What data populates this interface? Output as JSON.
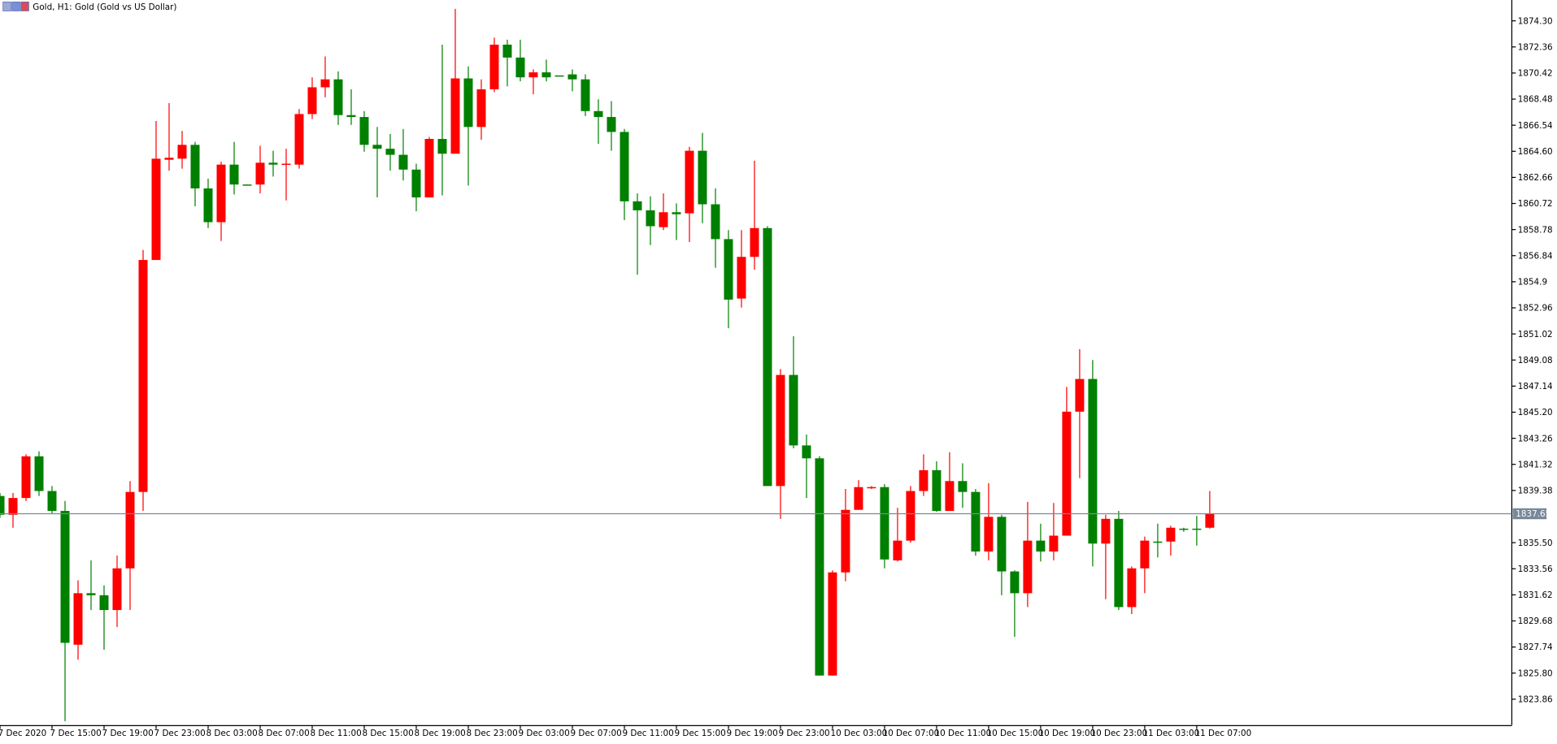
{
  "chart_data": {
    "type": "candlestick",
    "title": "Gold, H1:  Gold (Gold vs US Dollar)",
    "x": [
      "7 Dec 2020",
      null,
      null,
      null,
      "7 Dec 15:00",
      null,
      null,
      null,
      "7 Dec 19:00",
      null,
      null,
      null,
      "7 Dec 23:00",
      null,
      null,
      null,
      "8 Dec 03:00",
      null,
      null,
      null,
      "8 Dec 07:00",
      null,
      null,
      null,
      "8 Dec 11:00",
      null,
      null,
      null,
      "8 Dec 15:00",
      null,
      null,
      null,
      "8 Dec 19:00",
      null,
      null,
      null,
      "8 Dec 23:00",
      null,
      null,
      null,
      "9 Dec 03:00",
      null,
      null,
      null,
      "9 Dec 07:00",
      null,
      null,
      null,
      "9 Dec 11:00",
      null,
      null,
      null,
      "9 Dec 15:00",
      null,
      null,
      null,
      "9 Dec 19:00",
      null,
      null,
      null,
      "9 Dec 23:00",
      null,
      null,
      null,
      "10 Dec 03:00",
      null,
      null,
      null,
      "10 Dec 07:00",
      null,
      null,
      null,
      "10 Dec 11:00",
      null,
      null,
      null,
      "10 Dec 15:00",
      null,
      null,
      null,
      "10 Dec 19:00",
      null,
      null,
      null,
      "10 Dec 23:00",
      null,
      null,
      null,
      "11 Dec 03:00",
      null,
      null,
      null,
      "11 Dec 07:00",
      null
    ],
    "open": [
      1838.97,
      1837.57,
      1838.82,
      1841.92,
      1839.34,
      1837.86,
      1827.91,
      1831.74,
      1831.59,
      1830.49,
      1833.59,
      1839.27,
      1856.52,
      1863.97,
      1864.05,
      1865.08,
      1861.84,
      1859.33,
      1863.61,
      1862.13,
      1862.13,
      1863.75,
      1863.61,
      1863.61,
      1867.37,
      1869.36,
      1869.95,
      1867.29,
      1867.15,
      1865.08,
      1864.79,
      1864.34,
      1863.24,
      1861.17,
      1865.52,
      1864.42,
      1870.02,
      1866.41,
      1869.21,
      1872.53,
      1871.57,
      1870.1,
      1870.47,
      1870.24,
      1870.32,
      1869.95,
      1867.59,
      1867.15,
      1866.04,
      1860.88,
      1860.21,
      1858.96,
      1860.07,
      1859.99,
      1864.64,
      1860.66,
      1858.07,
      1853.65,
      1856.75,
      1858.89,
      1839.71,
      1847.97,
      1842.73,
      1841.77,
      1825.62,
      1833.29,
      1837.94,
      1839.56,
      1839.63,
      1834.18,
      1835.65,
      1839.34,
      1840.89,
      1837.86,
      1840.08,
      1839.27,
      1834.84,
      1837.42,
      1833.36,
      1831.74,
      1835.65,
      1834.84,
      1836.02,
      1845.24,
      1847.67,
      1835.43,
      1837.27,
      1830.71,
      1833.59,
      1835.58,
      1835.58,
      1836.54,
      1836.54,
      1836.61
    ],
    "high": [
      1839.19,
      1839.19,
      1842.07,
      1842.29,
      1839.71,
      1838.6,
      1832.7,
      1834.18,
      1832.33,
      1834.54,
      1840.08,
      1857.26,
      1866.85,
      1868.18,
      1866.11,
      1865.3,
      1862.57,
      1863.83,
      1865.3,
      1862.13,
      1865.01,
      1864.64,
      1864.79,
      1867.74,
      1870.1,
      1871.65,
      1870.54,
      1869.21,
      1867.59,
      1866.41,
      1865.89,
      1866.26,
      1863.68,
      1865.67,
      1872.53,
      1875.19,
      1870.91,
      1869.95,
      1873.05,
      1872.9,
      1872.9,
      1870.69,
      1871.42,
      1870.24,
      1870.69,
      1870.32,
      1868.47,
      1868.33,
      1866.26,
      1861.47,
      1861.25,
      1861.47,
      1860.73,
      1864.93,
      1865.97,
      1861.84,
      1858.74,
      1858.74,
      1863.9,
      1859.03,
      1848.41,
      1850.85,
      1843.54,
      1841.92,
      1833.44,
      1839.49,
      1840.15,
      1839.71,
      1839.86,
      1838.09,
      1839.71,
      1842.07,
      1841.55,
      1842.22,
      1841.4,
      1839.49,
      1839.93,
      1837.57,
      1833.44,
      1838.53,
      1836.91,
      1838.45,
      1847.08,
      1849.89,
      1849.08,
      1837.57,
      1837.86,
      1833.73,
      1835.95,
      1836.91,
      1836.76,
      1836.61,
      1837.49,
      1839.34
    ],
    "low": [
      1837.35,
      1836.61,
      1838.6,
      1838.97,
      1837.64,
      1822.23,
      1826.8,
      1830.49,
      1827.54,
      1829.23,
      1830.49,
      1837.86,
      1856.52,
      1863.16,
      1863.31,
      1860.51,
      1858.89,
      1857.93,
      1861.39,
      1862.06,
      1861.47,
      1862.72,
      1860.95,
      1863.31,
      1867.0,
      1868.62,
      1866.56,
      1866.56,
      1864.57,
      1861.17,
      1863.16,
      1862.43,
      1860.14,
      1861.17,
      1861.32,
      1864.42,
      1862.06,
      1865.45,
      1868.99,
      1869.43,
      1869.8,
      1868.84,
      1869.8,
      1870.17,
      1869.06,
      1867.22,
      1865.16,
      1864.64,
      1859.48,
      1855.42,
      1857.63,
      1858.74,
      1858.0,
      1857.85,
      1859.25,
      1855.94,
      1851.44,
      1852.98,
      1855.79,
      1839.71,
      1837.27,
      1842.51,
      1838.82,
      1825.62,
      1825.62,
      1832.63,
      1837.94,
      1839.49,
      1833.59,
      1834.1,
      1835.5,
      1838.97,
      1837.79,
      1837.86,
      1838.09,
      1834.54,
      1834.18,
      1831.59,
      1828.5,
      1830.71,
      1834.1,
      1834.18,
      1836.02,
      1840.3,
      1833.73,
      1831.3,
      1830.49,
      1830.19,
      1831.74,
      1834.4,
      1834.54,
      1836.31,
      1835.28,
      1836.54
    ],
    "close": [
      1837.57,
      1838.82,
      1841.92,
      1839.34,
      1837.86,
      1828.05,
      1831.74,
      1831.59,
      1830.49,
      1833.59,
      1839.27,
      1856.52,
      1864.05,
      1864.12,
      1865.08,
      1861.84,
      1859.33,
      1863.61,
      1862.13,
      1862.06,
      1863.75,
      1863.61,
      1863.68,
      1867.37,
      1869.36,
      1869.95,
      1867.29,
      1867.15,
      1865.08,
      1864.79,
      1864.34,
      1863.24,
      1861.17,
      1865.52,
      1864.42,
      1870.02,
      1866.41,
      1869.21,
      1872.53,
      1871.57,
      1870.1,
      1870.47,
      1870.1,
      1870.17,
      1869.95,
      1867.59,
      1867.15,
      1866.04,
      1860.88,
      1860.21,
      1859.03,
      1860.07,
      1859.92,
      1864.64,
      1860.66,
      1858.07,
      1853.57,
      1856.75,
      1858.89,
      1839.71,
      1847.97,
      1842.73,
      1841.77,
      1825.62,
      1833.29,
      1837.94,
      1839.63,
      1839.63,
      1834.25,
      1835.65,
      1839.34,
      1840.89,
      1837.86,
      1840.08,
      1839.27,
      1834.84,
      1837.42,
      1833.36,
      1831.74,
      1835.65,
      1834.84,
      1836.02,
      1845.24,
      1847.67,
      1835.43,
      1837.27,
      1830.71,
      1833.59,
      1835.65,
      1835.5,
      1836.61,
      1836.46,
      1836.46,
      1837.65
    ],
    "up_color": "#ff0000",
    "down_color": "#008000",
    "price_line": 1837.65,
    "price_line_color": "#778899",
    "ylim": [
      1821.93,
      1875.85
    ],
    "yticks": [
      1823.86,
      {
        "value": 1825.8,
        "label": "1825.80"
      },
      1827.74,
      1829.68,
      1831.62,
      1833.56,
      {
        "value": 1835.5,
        "label": "1835.50"
      },
      1839.38,
      1841.32,
      1843.26,
      {
        "value": 1845.2,
        "label": "1845.20"
      },
      1847.14,
      1849.08,
      1851.02,
      1852.96,
      1854.9,
      1856.84,
      1858.78,
      1860.72,
      1862.66,
      {
        "value": 1864.6,
        "label": "1864.60"
      },
      1866.54,
      1868.48,
      1870.42,
      1872.36,
      {
        "value": 1874.3,
        "label": "1874.30"
      }
    ]
  }
}
